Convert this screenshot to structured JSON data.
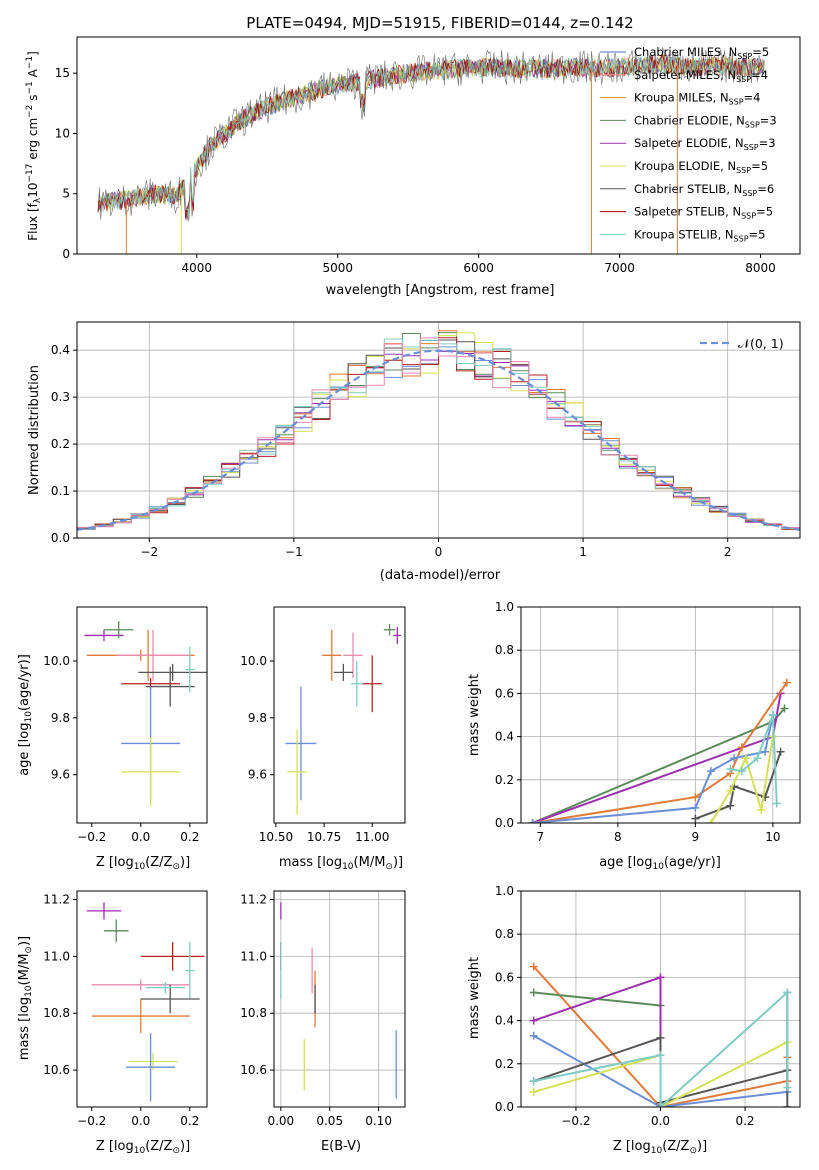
{
  "colors": {
    "chabrier_miles": "#4c72b0",
    "salpeter_miles": "#ff8c94",
    "kroupa_miles": "#c8961e",
    "chabrier_elodie": "#5a8a5a",
    "salpeter_elodie": "#9b2fae",
    "kroupa_elodie": "#d4e157",
    "chabrier_stelib": "#555555",
    "salpeter_stelib": "#a00000",
    "kroupa_stelib": "#80cbc4",
    "blue": "#6a8fd6",
    "orange": "#e07b39",
    "green": "#5a8a5a",
    "purple": "#9b2fae",
    "yellow": "#d4e157",
    "dark": "#555555",
    "red": "#b22222",
    "cyan": "#80cbc4",
    "pink": "#e88bb0"
  },
  "chart_data": [
    {
      "id": "spectrum",
      "type": "line",
      "title": "PLATE=0494, MJD=51915, FIBERID=0144, z=0.142",
      "xlabel": "wavelength [Angstrom, rest frame]",
      "ylabel_parts": {
        "a": "Flux [f",
        "b": "λ",
        "c": "10",
        "d": "−17",
        "e": " erg cm",
        "f": "−2",
        "g": " s",
        "h": "−1",
        "i": " A",
        "j": "−1",
        "k": "]"
      },
      "xlim": [
        3150,
        8280
      ],
      "ylim": [
        0,
        18
      ],
      "xticks": [
        4000,
        5000,
        6000,
        7000,
        8000
      ],
      "yticks": [
        0,
        5,
        10,
        15
      ],
      "legend_loc": "right",
      "legend": [
        {
          "pre": "Chabrier MILES, N",
          "sub": "SSP",
          "post": "=5",
          "color": "chabrier_miles"
        },
        {
          "pre": "Salpeter MILES, N",
          "sub": "SSP",
          "post": "=4",
          "color": "salpeter_miles"
        },
        {
          "pre": "Kroupa MILES, N",
          "sub": "SSP",
          "post": "=4",
          "color": "kroupa_miles"
        },
        {
          "pre": "Chabrier ELODIE, N",
          "sub": "SSP",
          "post": "=3",
          "color": "chabrier_elodie"
        },
        {
          "pre": "Salpeter ELODIE, N",
          "sub": "SSP",
          "post": "=3",
          "color": "salpeter_elodie"
        },
        {
          "pre": "Kroupa ELODIE, N",
          "sub": "SSP",
          "post": "=5",
          "color": "kroupa_elodie"
        },
        {
          "pre": "Chabrier STELIB, N",
          "sub": "SSP",
          "post": "=6",
          "color": "chabrier_stelib"
        },
        {
          "pre": "Salpeter STELIB, N",
          "sub": "SSP",
          "post": "=5",
          "color": "salpeter_stelib"
        },
        {
          "pre": "Kroupa STELIB, N",
          "sub": "SSP",
          "post": "=5",
          "color": "kroupa_stelib"
        }
      ],
      "continuum": [
        [
          3300,
          4.2
        ],
        [
          3500,
          4.5
        ],
        [
          3700,
          5.0
        ],
        [
          3850,
          4.8
        ],
        [
          3950,
          6.2
        ],
        [
          4100,
          9.0
        ],
        [
          4300,
          11.0
        ],
        [
          4500,
          12.2
        ],
        [
          4700,
          13.0
        ],
        [
          4900,
          13.8
        ],
        [
          5100,
          14.2
        ],
        [
          5300,
          14.6
        ],
        [
          5500,
          15.0
        ],
        [
          5700,
          15.2
        ],
        [
          5900,
          15.4
        ],
        [
          6100,
          15.5
        ],
        [
          6300,
          15.4
        ],
        [
          6500,
          15.4
        ],
        [
          6700,
          15.5
        ],
        [
          6900,
          15.4
        ],
        [
          7100,
          15.6
        ],
        [
          7300,
          15.8
        ],
        [
          7500,
          15.5
        ],
        [
          7700,
          15.6
        ],
        [
          7900,
          15.5
        ],
        [
          8030,
          15.5
        ]
      ]
    },
    {
      "id": "residuals",
      "type": "histogram",
      "xlabel": "(data-model)/error",
      "ylabel": "Normed distribution",
      "xlim": [
        -2.5,
        2.5
      ],
      "ylim": [
        0,
        0.46
      ],
      "xticks": [
        -2,
        -1,
        0,
        1,
        2
      ],
      "xtick_labels": [
        "−2",
        "−1",
        "0",
        "1",
        "2"
      ],
      "yticks": [
        0.0,
        0.1,
        0.2,
        0.3,
        0.4
      ],
      "ytick_labels": [
        "0.0",
        "0.1",
        "0.2",
        "0.3",
        "0.4"
      ],
      "grid": true,
      "bin_width": 0.125,
      "legend_loc": "top-right",
      "legend": [
        {
          "label": "𝒩(0, 1)",
          "style": "dashed",
          "color": "blue"
        }
      ],
      "model_curve": "normal(0,1)"
    },
    {
      "id": "age_vs_Z",
      "type": "errorbar",
      "xlabel_a": "Z [log",
      "xlabel_b": "10",
      "xlabel_c": "(Z/Z",
      "xlabel_d": "⊙",
      "xlabel_e": ")]",
      "ylabel_a": "age  [log",
      "ylabel_b": "10",
      "ylabel_c": "(age/yr)]",
      "xlim": [
        -0.26,
        0.27
      ],
      "ylim": [
        9.43,
        10.19
      ],
      "xticks": [
        -0.2,
        0.0,
        0.2
      ],
      "xtick_labels": [
        "−0.2",
        "0.0",
        "0.2"
      ],
      "yticks": [
        9.6,
        9.8,
        10.0
      ],
      "ytick_labels": [
        "9.6",
        "9.8",
        "10.0"
      ],
      "points": [
        {
          "x": -0.15,
          "xerr": 0.08,
          "y": 10.09,
          "yerr": 0.02,
          "color": "purple"
        },
        {
          "x": -0.09,
          "xerr": 0.06,
          "y": 10.11,
          "yerr": 0.03,
          "color": "green"
        },
        {
          "x": 0.0,
          "xerr": 0.22,
          "y": 10.02,
          "yerr": 0.02,
          "color": "orange"
        },
        {
          "x": 0.03,
          "xerr": 0.02,
          "y": 10.02,
          "yerr": 0.09,
          "color": "orange"
        },
        {
          "x": 0.05,
          "xerr": 0.15,
          "y": 10.02,
          "yerr": 0.09,
          "color": "pink"
        },
        {
          "x": 0.13,
          "xerr": 0.14,
          "y": 9.96,
          "yerr": 0.03,
          "color": "dark"
        },
        {
          "x": 0.12,
          "xerr": 0.1,
          "y": 9.91,
          "yerr": 0.07,
          "color": "dark"
        },
        {
          "x": 0.2,
          "xerr": 0.02,
          "y": 9.97,
          "yerr": 0.08,
          "color": "cyan"
        },
        {
          "x": 0.04,
          "xerr": 0.12,
          "y": 9.92,
          "yerr": 0.02,
          "color": "red"
        },
        {
          "x": 0.04,
          "xerr": 0.12,
          "y": 9.71,
          "yerr": 0.2,
          "color": "blue"
        },
        {
          "x": 0.04,
          "xerr": 0.12,
          "y": 9.61,
          "yerr": 0.12,
          "color": "yellow"
        }
      ]
    },
    {
      "id": "age_vs_mass",
      "type": "errorbar",
      "xlabel_a": "mass [log",
      "xlabel_b": "10",
      "xlabel_c": "(M/M",
      "xlabel_d": "⊙",
      "xlabel_e": ")]",
      "xlim": [
        10.49,
        11.17
      ],
      "ylim": [
        9.43,
        10.19
      ],
      "xticks": [
        10.5,
        10.75,
        11.0
      ],
      "xtick_labels": [
        "10.50",
        "10.75",
        "11.00"
      ],
      "yticks": [
        9.6,
        9.8,
        10.0
      ],
      "ytick_labels": [
        "9.6",
        "9.8",
        "10.0"
      ],
      "points": [
        {
          "x": 11.13,
          "xerr": 0.02,
          "y": 10.09,
          "yerr": 0.03,
          "color": "purple"
        },
        {
          "x": 11.09,
          "xerr": 0.03,
          "y": 10.11,
          "yerr": 0.02,
          "color": "green"
        },
        {
          "x": 10.79,
          "xerr": 0.05,
          "y": 10.02,
          "yerr": 0.09,
          "color": "orange"
        },
        {
          "x": 10.9,
          "xerr": 0.05,
          "y": 10.02,
          "yerr": 0.08,
          "color": "pink"
        },
        {
          "x": 10.85,
          "xerr": 0.05,
          "y": 9.96,
          "yerr": 0.03,
          "color": "dark"
        },
        {
          "x": 10.92,
          "xerr": 0.03,
          "y": 9.92,
          "yerr": 0.08,
          "color": "cyan"
        },
        {
          "x": 11.0,
          "xerr": 0.05,
          "y": 9.92,
          "yerr": 0.1,
          "color": "red"
        },
        {
          "x": 10.63,
          "xerr": 0.08,
          "y": 9.71,
          "yerr": 0.2,
          "color": "blue"
        },
        {
          "x": 10.61,
          "xerr": 0.05,
          "y": 9.61,
          "yerr": 0.15,
          "color": "yellow"
        }
      ]
    },
    {
      "id": "mass_weight_vs_age",
      "type": "line",
      "xlabel_a": "age  [log",
      "xlabel_b": "10",
      "xlabel_c": "(age/yr)]",
      "ylabel": "mass weight",
      "xlim": [
        6.75,
        10.35
      ],
      "ylim": [
        0,
        1
      ],
      "xticks": [
        7,
        8,
        9,
        10
      ],
      "xtick_labels": [
        "7",
        "8",
        "9",
        "10"
      ],
      "yticks": [
        0.0,
        0.2,
        0.4,
        0.6,
        0.8,
        1.0
      ],
      "ytick_labels": [
        "0.0",
        "0.2",
        "0.4",
        "0.6",
        "0.8",
        "1.0"
      ],
      "grid": true,
      "series": [
        {
          "color": "green",
          "x": [
            6.9,
            10.0,
            10.15
          ],
          "y": [
            0.0,
            0.47,
            0.53
          ]
        },
        {
          "color": "purple",
          "x": [
            6.9,
            10.0,
            10.1
          ],
          "y": [
            0.0,
            0.4,
            0.6
          ]
        },
        {
          "color": "orange",
          "x": [
            6.9,
            9.0,
            9.45,
            9.6,
            10.18
          ],
          "y": [
            0.0,
            0.12,
            0.23,
            0.35,
            0.65
          ]
        },
        {
          "color": "blue",
          "x": [
            6.9,
            9.0,
            9.2,
            9.5,
            9.9,
            10.0
          ],
          "y": [
            0.0,
            0.07,
            0.24,
            0.3,
            0.33,
            0.5
          ]
        },
        {
          "color": "dark",
          "x": [
            9.0,
            9.45,
            9.5,
            9.9,
            10.1
          ],
          "y": [
            0.02,
            0.08,
            0.17,
            0.12,
            0.33
          ]
        },
        {
          "color": "yellow",
          "x": [
            9.2,
            9.45,
            9.65,
            9.85,
            10.0
          ],
          "y": [
            0.0,
            0.15,
            0.3,
            0.06,
            0.4
          ]
        },
        {
          "color": "cyan",
          "x": [
            9.45,
            9.6,
            9.8,
            10.0,
            10.05
          ],
          "y": [
            0.25,
            0.24,
            0.3,
            0.5,
            0.09
          ]
        }
      ]
    },
    {
      "id": "mass_vs_Z",
      "type": "errorbar",
      "xlabel_a": "Z [log",
      "xlabel_b": "10",
      "xlabel_c": "(Z/Z",
      "xlabel_d": "⊙",
      "xlabel_e": ")]",
      "ylabel_a": "mass [log",
      "ylabel_b": "10",
      "ylabel_c": "(M/M",
      "ylabel_d": "⊙",
      "ylabel_e": ")]",
      "xlim": [
        -0.26,
        0.27
      ],
      "ylim": [
        10.47,
        11.23
      ],
      "xticks": [
        -0.2,
        0.0,
        0.2
      ],
      "xtick_labels": [
        "−0.2",
        "0.0",
        "0.2"
      ],
      "yticks": [
        10.6,
        10.8,
        11.0,
        11.2
      ],
      "ytick_labels": [
        "10.6",
        "10.8",
        "11.0",
        "11.2"
      ],
      "points": [
        {
          "x": -0.15,
          "xerr": 0.07,
          "y": 11.16,
          "yerr": 0.03,
          "color": "purple"
        },
        {
          "x": -0.1,
          "xerr": 0.05,
          "y": 11.09,
          "yerr": 0.04,
          "color": "green"
        },
        {
          "x": 0.0,
          "xerr": 0.2,
          "y": 10.9,
          "yerr": 0.02,
          "color": "pink"
        },
        {
          "x": 0.0,
          "xerr": 0.2,
          "y": 10.79,
          "yerr": 0.06,
          "color": "orange"
        },
        {
          "x": 0.13,
          "xerr": 0.13,
          "y": 11.0,
          "yerr": 0.05,
          "color": "red"
        },
        {
          "x": 0.2,
          "xerr": 0.02,
          "y": 10.95,
          "yerr": 0.1,
          "color": "cyan"
        },
        {
          "x": 0.12,
          "xerr": 0.12,
          "y": 10.85,
          "yerr": 0.05,
          "color": "dark"
        },
        {
          "x": 0.1,
          "xerr": 0.08,
          "y": 10.89,
          "yerr": 0.02,
          "color": "cyan"
        },
        {
          "x": 0.05,
          "xerr": 0.1,
          "y": 10.63,
          "yerr": 0.03,
          "color": "yellow"
        },
        {
          "x": 0.04,
          "xerr": 0.1,
          "y": 10.61,
          "yerr": 0.12,
          "color": "blue"
        }
      ]
    },
    {
      "id": "mass_vs_ebv",
      "type": "errorbar",
      "xlabel": "E(B-V)",
      "xlim": [
        -0.007,
        0.127
      ],
      "ylim": [
        10.47,
        11.23
      ],
      "xticks": [
        0.0,
        0.05,
        0.1
      ],
      "xtick_labels": [
        "0.00",
        "0.05",
        "0.10"
      ],
      "yticks": [
        10.6,
        10.8,
        11.0,
        11.2
      ],
      "ytick_labels": [
        "10.6",
        "10.8",
        "11.0",
        "11.2"
      ],
      "points": [
        {
          "x": 0.0,
          "y": 11.16,
          "yerr": 0.03,
          "color": "purple"
        },
        {
          "x": 0.0,
          "y": 11.0,
          "yerr": 0.05,
          "color": "red"
        },
        {
          "x": 0.0,
          "y": 10.95,
          "yerr": 0.1,
          "color": "cyan"
        },
        {
          "x": 0.032,
          "y": 10.95,
          "yerr": 0.08,
          "color": "pink"
        },
        {
          "x": 0.035,
          "y": 10.85,
          "yerr": 0.1,
          "color": "orange"
        },
        {
          "x": 0.035,
          "y": 10.85,
          "yerr": 0.05,
          "color": "dark"
        },
        {
          "x": 0.024,
          "y": 10.62,
          "yerr": 0.09,
          "color": "yellow"
        },
        {
          "x": 0.118,
          "y": 10.62,
          "yerr": 0.12,
          "color": "blue"
        }
      ]
    },
    {
      "id": "mass_weight_vs_Z",
      "type": "line",
      "xlabel_a": "Z [log",
      "xlabel_b": "10",
      "xlabel_c": "(Z/Z",
      "xlabel_d": "⊙",
      "xlabel_e": ")]",
      "ylabel": "mass weight",
      "xlim": [
        -0.33,
        0.33
      ],
      "ylim": [
        0,
        1
      ],
      "xticks": [
        -0.2,
        0.0,
        0.2
      ],
      "xtick_labels": [
        "−0.2",
        "0.0",
        "0.2"
      ],
      "yticks": [
        0.0,
        0.2,
        0.4,
        0.6,
        0.8,
        1.0
      ],
      "ytick_labels": [
        "0.0",
        "0.2",
        "0.4",
        "0.6",
        "0.8",
        "1.0"
      ],
      "grid": true,
      "series": [
        {
          "color": "orange",
          "x": [
            -0.3,
            0.0,
            0.3,
            0.3
          ],
          "y": [
            0.65,
            0.0,
            0.12,
            0.23
          ]
        },
        {
          "color": "green",
          "x": [
            -0.3,
            0.0,
            0.0
          ],
          "y": [
            0.53,
            0.47,
            0.0
          ]
        },
        {
          "color": "purple",
          "x": [
            -0.3,
            0.0,
            0.0
          ],
          "y": [
            0.4,
            0.6,
            0.0
          ]
        },
        {
          "color": "blue",
          "x": [
            -0.3,
            0.0,
            0.0,
            0.3,
            0.3
          ],
          "y": [
            0.33,
            0.0,
            0.0,
            0.07,
            0.53
          ]
        },
        {
          "color": "dark",
          "x": [
            -0.3,
            0.0,
            0.0,
            0.3,
            0.3
          ],
          "y": [
            0.12,
            0.32,
            0.02,
            0.17,
            0.0
          ]
        },
        {
          "color": "yellow",
          "x": [
            -0.3,
            0.0,
            0.0,
            0.3
          ],
          "y": [
            0.07,
            0.24,
            0.0,
            0.3
          ]
        },
        {
          "color": "cyan",
          "x": [
            -0.3,
            0.0,
            0.0,
            0.3,
            0.3
          ],
          "y": [
            0.12,
            0.24,
            0.0,
            0.53,
            0.09
          ]
        }
      ]
    }
  ]
}
